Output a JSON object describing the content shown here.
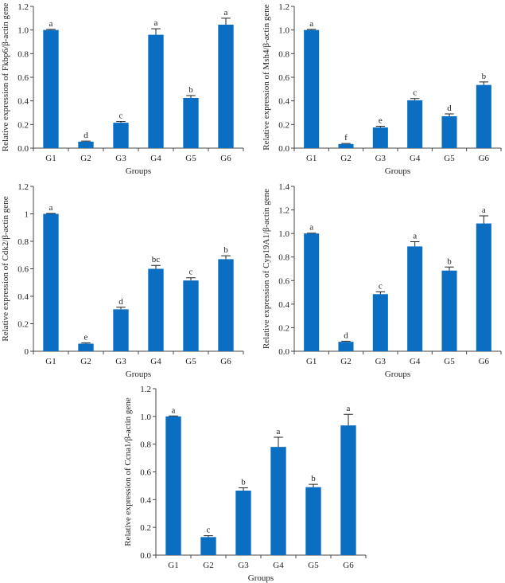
{
  "colors": {
    "bar": "#0a6fc2",
    "axis": "#444444",
    "text": "#222222"
  },
  "chart_data": [
    {
      "type": "bar",
      "title": "",
      "xlabel": "Groups",
      "ylabel": "Relative expression of Fkbp6/β-actin gene",
      "categories": [
        "G1",
        "G2",
        "G3",
        "G4",
        "G5",
        "G6"
      ],
      "values": [
        1.0,
        0.055,
        0.215,
        0.96,
        0.425,
        1.045
      ],
      "errors": [
        0.005,
        0.005,
        0.01,
        0.05,
        0.02,
        0.055
      ],
      "significance": [
        "a",
        "d",
        "c",
        "a",
        "b",
        "a"
      ],
      "ylim": [
        0,
        1.2
      ],
      "yticks": [
        "0.0",
        "0.2",
        "0.4",
        "0.6",
        "0.8",
        "1.0",
        "1.2"
      ],
      "grid": false,
      "legend": "none"
    },
    {
      "type": "bar",
      "title": "",
      "xlabel": "Groups",
      "ylabel": "Relative expression of Msh4/β-actin gene",
      "categories": [
        "G1",
        "G2",
        "G3",
        "G4",
        "G5",
        "G6"
      ],
      "values": [
        1.0,
        0.035,
        0.175,
        0.405,
        0.27,
        0.535
      ],
      "errors": [
        0.005,
        0.005,
        0.01,
        0.015,
        0.02,
        0.025
      ],
      "significance": [
        "a",
        "f",
        "e",
        "c",
        "d",
        "b"
      ],
      "ylim": [
        0,
        1.2
      ],
      "yticks": [
        "0.0",
        "0.2",
        "0.4",
        "0.6",
        "0.8",
        "1.0",
        "1.2"
      ],
      "grid": false,
      "legend": "none"
    },
    {
      "type": "bar",
      "title": "",
      "xlabel": "Groups",
      "ylabel": "Relative expression of Cdk2/β-actin gene",
      "categories": [
        "G1",
        "G2",
        "G3",
        "G4",
        "G5",
        "G6"
      ],
      "values": [
        1.0,
        0.055,
        0.305,
        0.6,
        0.515,
        0.67
      ],
      "errors": [
        0.003,
        0.005,
        0.015,
        0.025,
        0.02,
        0.025
      ],
      "significance": [
        "a",
        "e",
        "d",
        "bc",
        "c",
        "b"
      ],
      "ylim": [
        0,
        1.2
      ],
      "yticks": [
        "0",
        "0.2",
        "0.4",
        "0.6",
        "0.8",
        "1",
        "1.2"
      ],
      "grid": false,
      "legend": "none"
    },
    {
      "type": "bar",
      "title": "",
      "xlabel": "Groups",
      "ylabel": "Relative expression of Cyp19A1/β-actin gene",
      "categories": [
        "G1",
        "G2",
        "G3",
        "G4",
        "G5",
        "G6"
      ],
      "values": [
        1.0,
        0.08,
        0.485,
        0.89,
        0.685,
        1.085
      ],
      "errors": [
        0.003,
        0.005,
        0.02,
        0.04,
        0.03,
        0.065
      ],
      "significance": [
        "a",
        "d",
        "c",
        "a",
        "b",
        "a"
      ],
      "ylim": [
        0,
        1.4
      ],
      "yticks": [
        "0.0",
        "0.2",
        "0.4",
        "0.6",
        "0.8",
        "1.0",
        "1.2",
        "1.4"
      ],
      "grid": false,
      "legend": "none"
    },
    {
      "type": "bar",
      "title": "",
      "xlabel": "Groups",
      "ylabel": "Relative expression of Ccna1/β-actin gene",
      "categories": [
        "G1",
        "G2",
        "G3",
        "G4",
        "G5",
        "G6"
      ],
      "values": [
        1.0,
        0.13,
        0.465,
        0.78,
        0.49,
        0.935
      ],
      "errors": [
        0.003,
        0.01,
        0.02,
        0.07,
        0.02,
        0.08
      ],
      "significance": [
        "a",
        "c",
        "b",
        "a",
        "b",
        "a"
      ],
      "ylim": [
        0,
        1.2
      ],
      "yticks": [
        "0.0",
        "0.2",
        "0.4",
        "0.6",
        "0.8",
        "1.0",
        "1.2"
      ],
      "grid": false,
      "legend": "none"
    }
  ]
}
